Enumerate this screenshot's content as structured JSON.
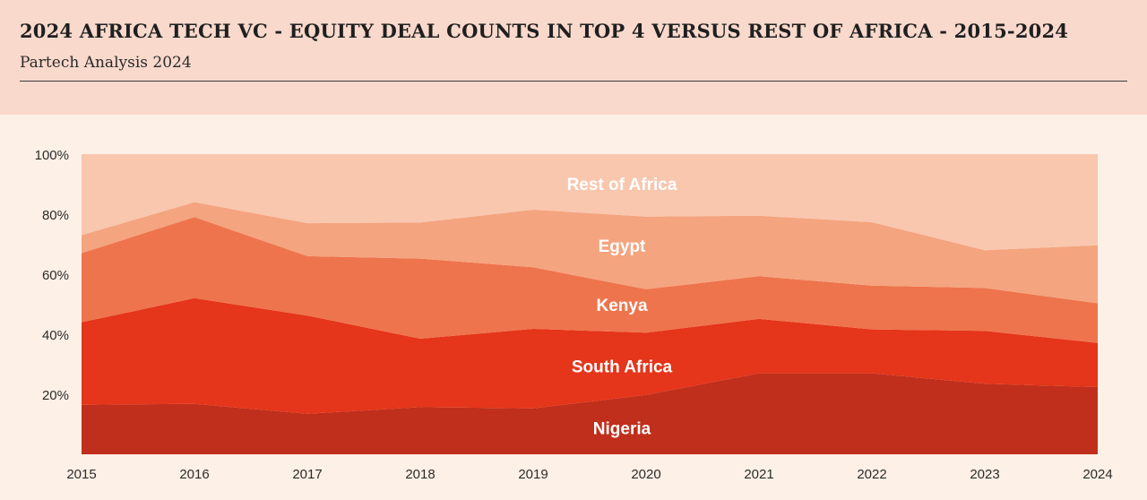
{
  "header": {
    "title": "2024 AFRICA TECH VC - EQUITY DEAL COUNTS IN TOP 4 VERSUS REST OF AFRICA - 2015-2024",
    "subtitle": "Partech Analysis 2024"
  },
  "chart_data": {
    "type": "area",
    "stacked": true,
    "normalized_percent": true,
    "title": "2024 AFRICA TECH VC - EQUITY DEAL COUNTS IN TOP 4 VERSUS REST OF AFRICA - 2015-2024",
    "subtitle": "Partech Analysis 2024",
    "xlabel": "",
    "ylabel": "",
    "x": [
      2015,
      2016,
      2017,
      2018,
      2019,
      2020,
      2021,
      2022,
      2023,
      2024
    ],
    "x_tick_labels": [
      "2015",
      "2016",
      "2017",
      "2018",
      "2019",
      "2020",
      "2021",
      "2022",
      "2023",
      "2024"
    ],
    "y_ticks": [
      20,
      40,
      60,
      80,
      100
    ],
    "y_tick_labels": [
      "20%",
      "40%",
      "60%",
      "80%",
      "100%"
    ],
    "ylim": [
      0,
      100
    ],
    "grid": false,
    "series": [
      {
        "name": "Nigeria",
        "color": "#c02f1c",
        "values": [
          16.5,
          16.8,
          13.5,
          15.7,
          15.3,
          19.8,
          27.0,
          27.0,
          23.5,
          22.4
        ]
      },
      {
        "name": "South Africa",
        "color": "#e5351a",
        "values": [
          27.5,
          35.2,
          32.7,
          22.8,
          26.5,
          20.7,
          18.1,
          14.6,
          17.6,
          14.7
        ]
      },
      {
        "name": "Kenya",
        "color": "#ee744d",
        "values": [
          23.0,
          27.0,
          19.8,
          26.7,
          20.5,
          14.5,
          14.2,
          14.6,
          14.3,
          13.2
        ]
      },
      {
        "name": "Egypt",
        "color": "#f4a47f",
        "values": [
          6.0,
          5.0,
          11.0,
          12.0,
          19.2,
          24.2,
          20.2,
          21.1,
          12.6,
          19.3
        ]
      },
      {
        "name": "Rest of Africa",
        "color": "#f9c6ae",
        "values": [
          27.0,
          16.0,
          23.0,
          22.8,
          18.5,
          20.8,
          20.5,
          22.7,
          32.0,
          30.4
        ]
      }
    ]
  }
}
